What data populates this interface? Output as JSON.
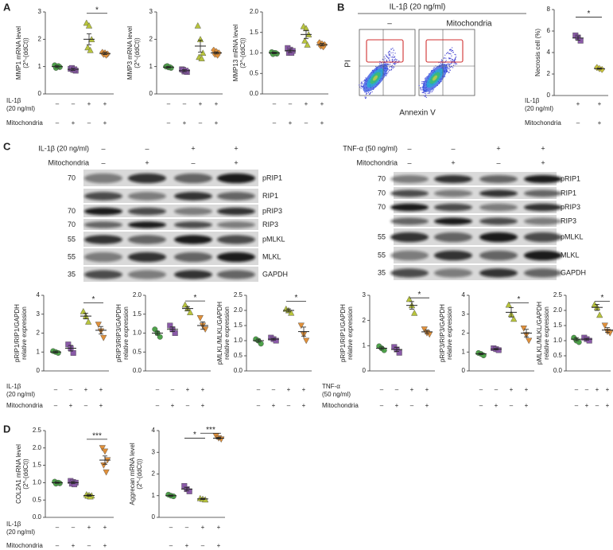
{
  "panels": [
    "A",
    "B",
    "C",
    "D"
  ],
  "flow": {
    "title": "IL-1β (20 ng/ml)",
    "columns": [
      "–",
      "Mitochondria"
    ],
    "ylabel": "PI",
    "xlabel": "Annexin V"
  },
  "blots": [
    {
      "conditions": [
        {
          "label": "IL-1β (20 ng/ml)",
          "signs": [
            "–",
            "–",
            "+",
            "+"
          ]
        },
        {
          "label": "Mitochondria",
          "signs": [
            "–",
            "+",
            "–",
            "+"
          ]
        }
      ],
      "rows": [
        {
          "label": "pRIP1",
          "mw": 70
        },
        {
          "label": "RIP1"
        },
        {
          "label": "pRIP3",
          "mw": 70
        },
        {
          "label": "RIP3",
          "mw": 70
        },
        {
          "label": "pMLKL",
          "mw": 55
        },
        {
          "label": "MLKL",
          "mw": 55
        },
        {
          "label": "GAPDH",
          "mw": 35
        }
      ]
    },
    {
      "conditions": [
        {
          "label": "TNF-α (50 ng/ml)",
          "signs": [
            "–",
            "–",
            "+",
            "+"
          ]
        },
        {
          "label": "Mitochondria",
          "signs": [
            "–",
            "+",
            "–",
            "+"
          ]
        }
      ],
      "rows": [
        {
          "label": "pRIP1",
          "mw": 70
        },
        {
          "label": "RIP1",
          "mw": 70
        },
        {
          "label": "pRIP3",
          "mw": 70
        },
        {
          "label": "RIP3"
        },
        {
          "label": "pMLKL",
          "mw": 55
        },
        {
          "label": "MLKL",
          "mw": 55
        },
        {
          "label": "GAPDH",
          "mw": 35
        }
      ]
    }
  ],
  "chart_data": [
    {
      "type": "dot",
      "ylabel": [
        "MMP1 mRNA level",
        "(2^-(ddCt))"
      ],
      "ylim": [
        0,
        3
      ],
      "yticks": [
        0,
        1,
        2,
        3
      ],
      "values": [
        1.0,
        0.9,
        2.0,
        1.48
      ],
      "errors": [
        0.04,
        0.04,
        0.2,
        0.04
      ],
      "points": [
        [
          1.05,
          1.0,
          0.98,
          0.95,
          1.02
        ],
        [
          0.92,
          0.88,
          0.85,
          0.95,
          0.9
        ],
        [
          2.6,
          2.5,
          2.0,
          1.7,
          1.6
        ],
        [
          1.52,
          1.5,
          1.46,
          1.45,
          1.42
        ]
      ],
      "colors": [
        "#4ea24a",
        "#8a5aa8",
        "#b8c43c",
        "#e0903a"
      ],
      "markers": [
        "circle",
        "square",
        "triangle",
        "diamond"
      ],
      "significance": [
        {
          "label": "*",
          "groups": [
            2,
            3
          ],
          "y": 2.95
        }
      ],
      "conditions": [
        {
          "label": [
            "IL-1β",
            "(20 ng/ml)"
          ],
          "signs": [
            "–",
            "–",
            "+",
            "+"
          ]
        },
        {
          "label": [
            "Mitochondria"
          ],
          "signs": [
            "–",
            "+",
            "–",
            "+"
          ]
        }
      ]
    },
    {
      "type": "dot",
      "ylabel": [
        "MMP3 mRNA level",
        "(2^-(ddCt))"
      ],
      "ylim": [
        0,
        3
      ],
      "yticks": [
        0,
        1,
        2,
        3
      ],
      "values": [
        0.98,
        0.85,
        1.75,
        1.5
      ],
      "errors": [
        0.03,
        0.04,
        0.22,
        0.04
      ],
      "points": [
        [
          1.0,
          0.97,
          0.95,
          1.02,
          0.98
        ],
        [
          0.9,
          0.82,
          0.8,
          0.88,
          0.85
        ],
        [
          2.5,
          2.0,
          1.5,
          1.35,
          1.3
        ],
        [
          1.6,
          1.55,
          1.5,
          1.45,
          1.42
        ]
      ],
      "colors": [
        "#4ea24a",
        "#8a5aa8",
        "#b8c43c",
        "#e0903a"
      ],
      "markers": [
        "circle",
        "square",
        "triangle",
        "diamond"
      ],
      "significance": [],
      "conditions": [
        {
          "signs": [
            "–",
            "–",
            "+",
            "+"
          ]
        },
        {
          "signs": [
            "–",
            "+",
            "–",
            "+"
          ]
        }
      ]
    },
    {
      "type": "dot",
      "ylabel": [
        "MMP13 mRNA level",
        "(2^-(ddCt))"
      ],
      "ylim": [
        0,
        2
      ],
      "yticks": [
        {
          "value": 0,
          "label": "0.0"
        },
        0.5,
        {
          "value": 1,
          "label": "1.0"
        },
        1.5,
        {
          "value": 2,
          "label": "2.0"
        }
      ],
      "values": [
        1.0,
        1.05,
        1.45,
        1.2
      ],
      "errors": [
        0.02,
        0.04,
        0.1,
        0.03
      ],
      "points": [
        [
          1.02,
          1.0,
          0.98,
          0.97,
          1.0
        ],
        [
          1.12,
          1.08,
          1.05,
          1.0,
          1.0
        ],
        [
          1.65,
          1.6,
          1.45,
          1.3,
          1.2
        ],
        [
          1.25,
          1.22,
          1.2,
          1.17,
          1.15
        ]
      ],
      "colors": [
        "#4ea24a",
        "#8a5aa8",
        "#b8c43c",
        "#e0903a"
      ],
      "markers": [
        "circle",
        "square",
        "triangle",
        "diamond"
      ],
      "significance": [],
      "conditions": [
        {
          "signs": [
            "–",
            "–",
            "+",
            "+"
          ]
        },
        {
          "signs": [
            "–",
            "+",
            "–",
            "+"
          ]
        }
      ]
    },
    {
      "type": "dot",
      "ylabel": [
        "Necrosis cell (%)"
      ],
      "ylim": [
        0,
        8
      ],
      "yticks": [
        0,
        2,
        4,
        6,
        8
      ],
      "values": [
        5.35,
        2.5
      ],
      "errors": [
        0.2,
        0.05
      ],
      "points": [
        [
          5.6,
          5.4,
          5.1
        ],
        [
          2.6,
          2.5,
          2.42
        ]
      ],
      "colors": [
        "#8a5aa8",
        "#c8c23a"
      ],
      "markers": [
        "square",
        "diamond"
      ],
      "significance": [
        {
          "label": "*",
          "groups": [
            0,
            1
          ],
          "y": 7.3
        }
      ],
      "conditions": [
        {
          "label": [
            "IL-1β",
            "(20 ng/ml)"
          ],
          "signs": [
            "+",
            "+"
          ]
        },
        {
          "label": [
            "Mitochondria"
          ],
          "signs": [
            "–",
            "+"
          ]
        }
      ]
    },
    {
      "type": "dot",
      "ylabel": [
        "pRIP1/RIP1/GAPDH",
        "relative expression"
      ],
      "ylim": [
        0,
        4
      ],
      "yticks": [
        0,
        1,
        2,
        3,
        4
      ],
      "values": [
        1.0,
        1.2,
        2.9,
        2.15
      ],
      "errors": [
        0.05,
        0.15,
        0.15,
        0.2
      ],
      "points": [
        [
          1.05,
          1.0,
          0.95
        ],
        [
          1.4,
          1.2,
          0.95
        ],
        [
          3.15,
          2.9,
          2.6
        ],
        [
          2.45,
          2.1,
          1.75
        ]
      ],
      "colors": [
        "#4ea24a",
        "#8a5aa8",
        "#b8c43c",
        "#e0903a"
      ],
      "markers": [
        "circle",
        "square",
        "triangle",
        "triangle-down"
      ],
      "significance": [
        {
          "label": "*",
          "groups": [
            2,
            3
          ],
          "y": 3.6
        }
      ],
      "conditions": [
        {
          "label": [
            "IL-1β",
            "(20 ng/ml)"
          ],
          "signs": [
            "–",
            "–",
            "+",
            "+"
          ]
        },
        {
          "label": [
            "Mitochondria"
          ],
          "signs": [
            "–",
            "+",
            "–",
            "+"
          ]
        }
      ]
    },
    {
      "type": "dot",
      "ylabel": [
        "pRIP3/RIP3/GAPDH",
        "relative expression"
      ],
      "ylim": [
        0,
        2
      ],
      "yticks": [
        {
          "value": 0,
          "label": "0.0"
        },
        0.5,
        {
          "value": 1,
          "label": "1.0"
        },
        1.5,
        {
          "value": 2,
          "label": "2.0"
        }
      ],
      "values": [
        1.0,
        1.1,
        1.65,
        1.2
      ],
      "errors": [
        0.05,
        0.06,
        0.05,
        0.1
      ],
      "points": [
        [
          1.1,
          1.0,
          0.9
        ],
        [
          1.2,
          1.1,
          1.0
        ],
        [
          1.75,
          1.65,
          1.55
        ],
        [
          1.4,
          1.2,
          1.1
        ]
      ],
      "colors": [
        "#4ea24a",
        "#8a5aa8",
        "#b8c43c",
        "#e0903a"
      ],
      "markers": [
        "circle",
        "square",
        "triangle",
        "triangle-down"
      ],
      "significance": [
        {
          "label": "*",
          "groups": [
            2,
            3
          ],
          "y": 1.85
        }
      ],
      "conditions": [
        {
          "signs": [
            "–",
            "–",
            "+",
            "+"
          ]
        },
        {
          "signs": [
            "–",
            "+",
            "–",
            "+"
          ]
        }
      ]
    },
    {
      "type": "dot",
      "ylabel": [
        "pMLKL/MLKL/GAPDH",
        "relative expression"
      ],
      "ylim": [
        0,
        2.5
      ],
      "yticks": [
        {
          "value": 0,
          "label": "0.0"
        },
        0.5,
        {
          "value": 1,
          "label": "1.0"
        },
        1.5,
        {
          "value": 2,
          "label": "2.0"
        },
        2.5
      ],
      "values": [
        1.0,
        1.05,
        2.0,
        1.3
      ],
      "errors": [
        0.05,
        0.03,
        0.05,
        0.15
      ],
      "points": [
        [
          1.05,
          1.0,
          0.9
        ],
        [
          1.1,
          1.05,
          1.0
        ],
        [
          2.05,
          2.0,
          1.92
        ],
        [
          1.5,
          1.2,
          1.0
        ]
      ],
      "colors": [
        "#4ea24a",
        "#8a5aa8",
        "#b8c43c",
        "#e0903a"
      ],
      "markers": [
        "circle",
        "square",
        "triangle",
        "triangle-down"
      ],
      "significance": [
        {
          "label": "*",
          "groups": [
            2,
            3
          ],
          "y": 2.3
        }
      ],
      "conditions": [
        {
          "signs": [
            "–",
            "–",
            "+",
            "+"
          ]
        },
        {
          "signs": [
            "–",
            "+",
            "–",
            "+"
          ]
        }
      ]
    },
    {
      "type": "dot",
      "ylabel": [
        "pRIP1/RIP1/GAPDH",
        "relative expression"
      ],
      "ylim": [
        0,
        3
      ],
      "yticks": [
        0,
        1,
        2,
        3
      ],
      "values": [
        0.9,
        0.85,
        2.6,
        1.55
      ],
      "errors": [
        0.05,
        0.08,
        0.15,
        0.07
      ],
      "points": [
        [
          0.98,
          0.9,
          0.82
        ],
        [
          0.95,
          0.85,
          0.72
        ],
        [
          2.85,
          2.6,
          2.3
        ],
        [
          1.65,
          1.5,
          1.45
        ]
      ],
      "colors": [
        "#4ea24a",
        "#8a5aa8",
        "#b8c43c",
        "#e0903a"
      ],
      "markers": [
        "circle",
        "square",
        "triangle",
        "triangle-down"
      ],
      "significance": [
        {
          "label": "*",
          "groups": [
            2,
            3
          ],
          "y": 2.9
        }
      ],
      "conditions": [
        {
          "label": [
            "TNF-α",
            "(50 ng/ml)"
          ],
          "signs": [
            "–",
            "–",
            "+",
            "+"
          ]
        },
        {
          "label": [
            "Mitochondria"
          ],
          "signs": [
            "–",
            "+",
            "–",
            "+"
          ]
        }
      ]
    },
    {
      "type": "dot",
      "ylabel": [
        "pRIP3/RIP3/GAPDH",
        "relative expression"
      ],
      "ylim": [
        0,
        4
      ],
      "yticks": [
        0,
        1,
        2,
        3,
        4
      ],
      "values": [
        0.9,
        1.15,
        3.1,
        2.0
      ],
      "errors": [
        0.04,
        0.04,
        0.25,
        0.2
      ],
      "points": [
        [
          0.95,
          0.9,
          0.82
        ],
        [
          1.2,
          1.15,
          1.1
        ],
        [
          3.5,
          3.0,
          2.75
        ],
        [
          2.25,
          1.9,
          1.6
        ]
      ],
      "colors": [
        "#4ea24a",
        "#8a5aa8",
        "#b8c43c",
        "#e0903a"
      ],
      "markers": [
        "circle",
        "square",
        "triangle",
        "triangle-down"
      ],
      "significance": [
        {
          "label": "*",
          "groups": [
            2,
            3
          ],
          "y": 3.6
        }
      ],
      "conditions": [
        {
          "signs": [
            "–",
            "–",
            "+",
            "+"
          ]
        },
        {
          "signs": [
            "–",
            "+",
            "–",
            "+"
          ]
        }
      ]
    },
    {
      "type": "dot",
      "ylabel": [
        "pMLKL/MLKL/GAPDH",
        "relative expression"
      ],
      "ylim": [
        0,
        2.5
      ],
      "yticks": [
        {
          "value": 0,
          "label": "0.0"
        },
        0.5,
        {
          "value": 1,
          "label": "1.0"
        },
        1.5,
        {
          "value": 2,
          "label": "2.0"
        },
        2.5
      ],
      "values": [
        1.05,
        1.05,
        2.1,
        1.35
      ],
      "errors": [
        0.05,
        0.03,
        0.1,
        0.08
      ],
      "points": [
        [
          1.1,
          1.0,
          0.95
        ],
        [
          1.1,
          1.05,
          1.0
        ],
        [
          2.2,
          2.1,
          1.85
        ],
        [
          1.5,
          1.3,
          1.25
        ]
      ],
      "colors": [
        "#4ea24a",
        "#8a5aa8",
        "#b8c43c",
        "#e0903a"
      ],
      "markers": [
        "circle",
        "square",
        "triangle",
        "triangle-down"
      ],
      "significance": [
        {
          "label": "*",
          "groups": [
            2,
            3
          ],
          "y": 2.3
        }
      ],
      "conditions": [
        {
          "signs": [
            "–",
            "–",
            "+",
            "+"
          ]
        },
        {
          "signs": [
            "–",
            "+",
            "–",
            "+"
          ]
        }
      ]
    },
    {
      "type": "dot",
      "ylabel": [
        "COL2A1 mRNA level",
        "(2^-(ddCt))"
      ],
      "ylim": [
        0,
        2.5
      ],
      "yticks": [
        {
          "value": 0,
          "label": "0.0"
        },
        0.5,
        {
          "value": 1,
          "label": "1.0"
        },
        1.5,
        {
          "value": 2,
          "label": "2.0"
        },
        2.5
      ],
      "values": [
        1.0,
        1.0,
        0.63,
        1.65
      ],
      "errors": [
        0.02,
        0.03,
        0.02,
        0.12
      ],
      "points": [
        [
          1.03,
          1.0,
          0.98,
          0.97,
          1.0
        ],
        [
          1.05,
          1.02,
          1.0,
          0.97,
          0.95
        ],
        [
          0.66,
          0.64,
          0.63,
          0.62,
          0.6
        ],
        [
          2.0,
          1.9,
          1.65,
          1.5,
          1.3
        ]
      ],
      "colors": [
        "#4ea24a",
        "#8a5aa8",
        "#b8c43c",
        "#e0903a"
      ],
      "markers": [
        "circle",
        "square",
        "triangle",
        "triangle-down"
      ],
      "significance": [
        {
          "label": "***",
          "groups": [
            2,
            3
          ],
          "y": 2.25
        }
      ],
      "conditions": [
        {
          "label": [
            "IL-1β",
            "(20 ng/ml)"
          ],
          "signs": [
            "–",
            "–",
            "+",
            "+"
          ]
        },
        {
          "label": [
            "Mitochondria"
          ],
          "signs": [
            "–",
            "+",
            "–",
            "+"
          ]
        }
      ]
    },
    {
      "type": "dot",
      "ylabel": [
        "Aggrecan mRNA level",
        "(2^-(ddCt))"
      ],
      "ylim": [
        0,
        4
      ],
      "yticks": [
        0,
        1,
        2,
        3,
        4
      ],
      "values": [
        1.0,
        1.3,
        0.85,
        3.65
      ],
      "errors": [
        0.03,
        0.08,
        0.03,
        0.04
      ],
      "points": [
        [
          1.05,
          1.0,
          0.97
        ],
        [
          1.45,
          1.3,
          1.2
        ],
        [
          0.88,
          0.85,
          0.82
        ],
        [
          3.75,
          3.65,
          3.6
        ]
      ],
      "colors": [
        "#4ea24a",
        "#8a5aa8",
        "#b8c43c",
        "#e0903a"
      ],
      "markers": [
        "circle",
        "square",
        "triangle",
        "triangle-down"
      ],
      "significance": [
        {
          "label": "*",
          "groups": [
            1,
            2
          ],
          "y": 3.65
        },
        {
          "label": "***",
          "groups": [
            2,
            3
          ],
          "y": 3.88
        }
      ],
      "conditions": [
        {
          "signs": [
            "–",
            "–",
            "+",
            "+"
          ]
        },
        {
          "signs": [
            "–",
            "+",
            "–",
            "+"
          ]
        }
      ]
    }
  ]
}
